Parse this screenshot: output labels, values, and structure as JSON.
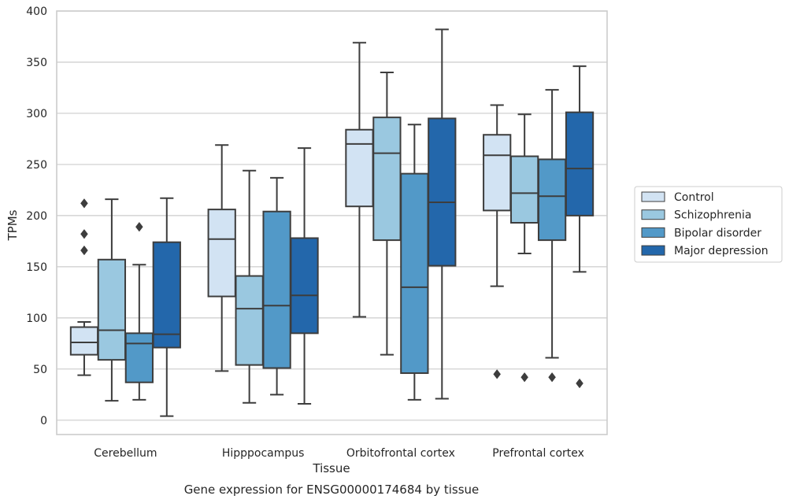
{
  "chart_data": {
    "type": "box",
    "title": "Gene expression for ENSG00000174684 by tissue",
    "xlabel": "Tissue",
    "ylabel": "TPMs",
    "ylim": [
      -14,
      400
    ],
    "yticks": [
      0,
      50,
      100,
      150,
      200,
      250,
      300,
      350,
      400
    ],
    "grid": true,
    "legend_position": "right",
    "categories": [
      "Cerebellum",
      "Hipppocampus",
      "Orbitofrontal cortex",
      "Prefrontal cortex"
    ],
    "series": [
      {
        "name": "Control",
        "color": "#d2e3f3",
        "boxes": [
          {
            "whisker_low": 44,
            "q1": 64,
            "median": 76,
            "q3": 91,
            "whisker_high": 96,
            "outliers": [
              166,
              182,
              212
            ]
          },
          {
            "whisker_low": 48,
            "q1": 121,
            "median": 177,
            "q3": 206,
            "whisker_high": 269,
            "outliers": []
          },
          {
            "whisker_low": 101,
            "q1": 209,
            "median": 270,
            "q3": 284,
            "whisker_high": 369,
            "outliers": []
          },
          {
            "whisker_low": 131,
            "q1": 205,
            "median": 259,
            "q3": 279,
            "whisker_high": 308,
            "outliers": [
              45
            ]
          }
        ]
      },
      {
        "name": "Schizophrenia",
        "color": "#9ac8e0",
        "boxes": [
          {
            "whisker_low": 19,
            "q1": 59,
            "median": 88,
            "q3": 157,
            "whisker_high": 216,
            "outliers": []
          },
          {
            "whisker_low": 17,
            "q1": 54,
            "median": 109,
            "q3": 141,
            "whisker_high": 244,
            "outliers": []
          },
          {
            "whisker_low": 64,
            "q1": 176,
            "median": 261,
            "q3": 296,
            "whisker_high": 340,
            "outliers": []
          },
          {
            "whisker_low": 163,
            "q1": 193,
            "median": 222,
            "q3": 258,
            "whisker_high": 299,
            "outliers": [
              42
            ]
          }
        ]
      },
      {
        "name": "Bipolar disorder",
        "color": "#5299c8",
        "boxes": [
          {
            "whisker_low": 20,
            "q1": 37,
            "median": 75,
            "q3": 85,
            "whisker_high": 152,
            "outliers": [
              189
            ]
          },
          {
            "whisker_low": 25,
            "q1": 51,
            "median": 112,
            "q3": 204,
            "whisker_high": 237,
            "outliers": []
          },
          {
            "whisker_low": 20,
            "q1": 46,
            "median": 130,
            "q3": 241,
            "whisker_high": 289,
            "outliers": []
          },
          {
            "whisker_low": 61,
            "q1": 176,
            "median": 219,
            "q3": 255,
            "whisker_high": 323,
            "outliers": [
              42
            ]
          }
        ]
      },
      {
        "name": "Major depression",
        "color": "#2367ab",
        "boxes": [
          {
            "whisker_low": 4,
            "q1": 71,
            "median": 84,
            "q3": 174,
            "whisker_high": 217,
            "outliers": []
          },
          {
            "whisker_low": 16,
            "q1": 85,
            "median": 122,
            "q3": 178,
            "whisker_high": 266,
            "outliers": []
          },
          {
            "whisker_low": 21,
            "q1": 151,
            "median": 213,
            "q3": 295,
            "whisker_high": 382,
            "outliers": []
          },
          {
            "whisker_low": 145,
            "q1": 200,
            "median": 246,
            "q3": 301,
            "whisker_high": 346,
            "outliers": [
              36
            ]
          }
        ]
      }
    ]
  },
  "styles": {
    "grid_color": "#cccccc",
    "spine_color": "#cccccc",
    "box_edge_color": "#3d3d3d",
    "text_color": "#262626"
  }
}
